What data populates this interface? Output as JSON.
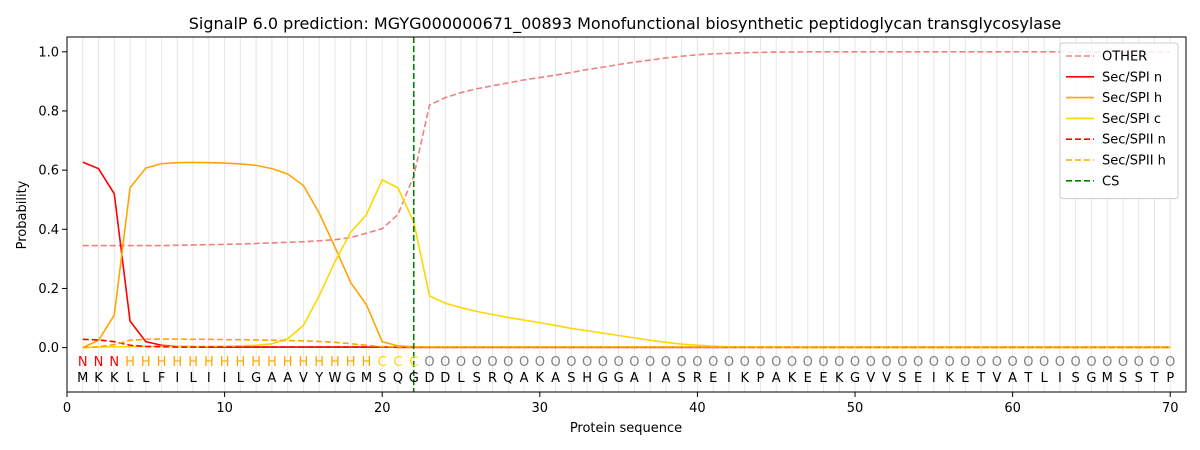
{
  "chart_data": {
    "type": "line",
    "title": "SignalP 6.0 prediction: MGYG000000671_00893 Monofunctional biosynthetic peptidoglycan transglycosylase",
    "xlabel": "Protein sequence",
    "ylabel": "Probability",
    "xlim": [
      0,
      71
    ],
    "ylim": [
      -0.15,
      1.05
    ],
    "xticks": [
      0,
      10,
      20,
      30,
      40,
      50,
      60,
      70
    ],
    "yticks": [
      0.0,
      0.2,
      0.4,
      0.6,
      0.8,
      1.0
    ],
    "xtick_labels": [
      "0",
      "10",
      "20",
      "30",
      "40",
      "50",
      "60",
      "70"
    ],
    "ytick_labels": [
      "0.0",
      "0.2",
      "0.4",
      "0.6",
      "0.8",
      "1.0"
    ],
    "grid": "vertical lines at every residue",
    "legend_position": "top-right",
    "sequence": [
      "M",
      "K",
      "K",
      "L",
      "L",
      "F",
      "I",
      "L",
      "I",
      "I",
      "L",
      "G",
      "A",
      "A",
      "V",
      "Y",
      "W",
      "G",
      "M",
      "S",
      "Q",
      "G",
      "D",
      "D",
      "L",
      "S",
      "R",
      "Q",
      "A",
      "K",
      "A",
      "S",
      "H",
      "G",
      "G",
      "A",
      "I",
      "A",
      "S",
      "R",
      "E",
      "I",
      "K",
      "P",
      "A",
      "K",
      "E",
      "E",
      "K",
      "G",
      "V",
      "V",
      "S",
      "E",
      "I",
      "K",
      "E",
      "T",
      "V",
      "A",
      "T",
      "L",
      "I",
      "S",
      "G",
      "M",
      "S",
      "S",
      "T",
      "P"
    ],
    "labels": [
      "N",
      "N",
      "N",
      "H",
      "H",
      "H",
      "H",
      "H",
      "H",
      "H",
      "H",
      "H",
      "H",
      "H",
      "H",
      "H",
      "H",
      "H",
      "H",
      "C",
      "C",
      "C",
      "O",
      "O",
      "O",
      "O",
      "O",
      "O",
      "O",
      "O",
      "O",
      "O",
      "O",
      "O",
      "O",
      "O",
      "O",
      "O",
      "O",
      "O",
      "O",
      "O",
      "O",
      "O",
      "O",
      "O",
      "O",
      "O",
      "O",
      "O",
      "O",
      "O",
      "O",
      "O",
      "O",
      "O",
      "O",
      "O",
      "O",
      "O",
      "O",
      "O",
      "O",
      "O",
      "O",
      "O",
      "O",
      "O",
      "O",
      "O"
    ],
    "label_colors": {
      "N": "#ff0000",
      "H": "#ffa500",
      "C": "#ffd700",
      "O": "#808080"
    },
    "series": [
      {
        "name": "OTHER",
        "color": "#f08080",
        "dash": true,
        "values": [
          0.345,
          0.345,
          0.345,
          0.345,
          0.345,
          0.345,
          0.346,
          0.347,
          0.348,
          0.349,
          0.35,
          0.352,
          0.354,
          0.356,
          0.358,
          0.361,
          0.365,
          0.372,
          0.387,
          0.402,
          0.45,
          0.58,
          0.82,
          0.845,
          0.862,
          0.875,
          0.885,
          0.895,
          0.905,
          0.913,
          0.921,
          0.93,
          0.94,
          0.948,
          0.957,
          0.965,
          0.972,
          0.979,
          0.985,
          0.99,
          0.993,
          0.995,
          0.997,
          0.998,
          0.999,
          0.999,
          1.0,
          1.0,
          1.0,
          1.0,
          1.0,
          1.0,
          1.0,
          1.0,
          1.0,
          1.0,
          1.0,
          1.0,
          1.0,
          1.0,
          1.0,
          1.0,
          1.0,
          1.0,
          1.0,
          1.0,
          1.0,
          1.0,
          1.0,
          1.0
        ]
      },
      {
        "name": "Sec/SPI n",
        "color": "#ff0000",
        "dash": false,
        "values": [
          0.627,
          0.605,
          0.52,
          0.09,
          0.02,
          0.008,
          0.004,
          0.003,
          0.002,
          0.002,
          0.002,
          0.002,
          0.002,
          0.002,
          0.002,
          0.002,
          0.002,
          0.002,
          0.002,
          0.002,
          0.001,
          0.001,
          0.001,
          0.001,
          0.001,
          0.001,
          0.001,
          0.001,
          0.001,
          0.001,
          0.001,
          0.001,
          0.001,
          0.001,
          0.001,
          0.001,
          0.001,
          0.001,
          0.001,
          0.001,
          0.001,
          0.001,
          0.001,
          0.001,
          0.001,
          0.001,
          0.001,
          0.001,
          0.001,
          0.001,
          0.001,
          0.001,
          0.001,
          0.001,
          0.001,
          0.001,
          0.001,
          0.001,
          0.001,
          0.001,
          0.001,
          0.001,
          0.001,
          0.001,
          0.001,
          0.001,
          0.001,
          0.001,
          0.001,
          0.001
        ]
      },
      {
        "name": "Sec/SPI h",
        "color": "#ffa500",
        "dash": false,
        "values": [
          0.0,
          0.025,
          0.11,
          0.54,
          0.607,
          0.622,
          0.625,
          0.626,
          0.625,
          0.624,
          0.621,
          0.616,
          0.605,
          0.587,
          0.548,
          0.455,
          0.34,
          0.22,
          0.145,
          0.02,
          0.006,
          0.003,
          0.002,
          0.002,
          0.002,
          0.002,
          0.002,
          0.002,
          0.002,
          0.002,
          0.002,
          0.002,
          0.002,
          0.002,
          0.002,
          0.002,
          0.002,
          0.002,
          0.002,
          0.002,
          0.002,
          0.002,
          0.002,
          0.002,
          0.002,
          0.002,
          0.002,
          0.002,
          0.002,
          0.002,
          0.002,
          0.002,
          0.002,
          0.002,
          0.002,
          0.002,
          0.002,
          0.002,
          0.002,
          0.002,
          0.002,
          0.002,
          0.002,
          0.002,
          0.002,
          0.002,
          0.002,
          0.002,
          0.002,
          0.002
        ]
      },
      {
        "name": "Sec/SPI c",
        "color": "#ffd700",
        "dash": false,
        "values": [
          0.0,
          0.002,
          0.003,
          0.003,
          0.004,
          0.004,
          0.004,
          0.004,
          0.004,
          0.005,
          0.006,
          0.008,
          0.013,
          0.03,
          0.075,
          0.175,
          0.29,
          0.39,
          0.45,
          0.567,
          0.54,
          0.425,
          0.175,
          0.15,
          0.135,
          0.122,
          0.112,
          0.102,
          0.093,
          0.084,
          0.075,
          0.065,
          0.057,
          0.049,
          0.041,
          0.033,
          0.025,
          0.018,
          0.012,
          0.008,
          0.005,
          0.003,
          0.002,
          0.001,
          0.001,
          0.001,
          0.0,
          0.0,
          0.0,
          0.0,
          0.0,
          0.0,
          0.0,
          0.0,
          0.0,
          0.0,
          0.0,
          0.0,
          0.0,
          0.0,
          0.0,
          0.0,
          0.0,
          0.0,
          0.0,
          0.0,
          0.0,
          0.0,
          0.0,
          0.0
        ]
      },
      {
        "name": "Sec/SPII n",
        "color": "#ff0000",
        "dash": true,
        "values": [
          0.028,
          0.026,
          0.02,
          0.008,
          0.004,
          0.003,
          0.002,
          0.002,
          0.002,
          0.002,
          0.002,
          0.002,
          0.002,
          0.002,
          0.002,
          0.002,
          0.002,
          0.002,
          0.002,
          0.002,
          0.001,
          0.001,
          0.001,
          0.001,
          0.001,
          0.001,
          0.001,
          0.001,
          0.001,
          0.001,
          0.001,
          0.001,
          0.001,
          0.001,
          0.001,
          0.001,
          0.001,
          0.001,
          0.001,
          0.001,
          0.001,
          0.001,
          0.001,
          0.001,
          0.001,
          0.001,
          0.001,
          0.001,
          0.001,
          0.001,
          0.001,
          0.001,
          0.001,
          0.001,
          0.001,
          0.001,
          0.001,
          0.001,
          0.001,
          0.001,
          0.001,
          0.001,
          0.001,
          0.001,
          0.001,
          0.001,
          0.001,
          0.001,
          0.001,
          0.001
        ]
      },
      {
        "name": "Sec/SPII h",
        "color": "#ffa500",
        "dash": true,
        "values": [
          0.0,
          0.003,
          0.01,
          0.025,
          0.028,
          0.029,
          0.029,
          0.028,
          0.028,
          0.027,
          0.027,
          0.026,
          0.025,
          0.024,
          0.023,
          0.021,
          0.018,
          0.013,
          0.008,
          0.003,
          0.002,
          0.002,
          0.002,
          0.002,
          0.002,
          0.002,
          0.002,
          0.002,
          0.002,
          0.002,
          0.002,
          0.002,
          0.002,
          0.002,
          0.002,
          0.002,
          0.002,
          0.002,
          0.002,
          0.002,
          0.002,
          0.002,
          0.002,
          0.002,
          0.002,
          0.002,
          0.002,
          0.002,
          0.002,
          0.002,
          0.002,
          0.002,
          0.002,
          0.002,
          0.002,
          0.002,
          0.002,
          0.002,
          0.002,
          0.002,
          0.002,
          0.002,
          0.002,
          0.002,
          0.002,
          0.002,
          0.002,
          0.002,
          0.002,
          0.002
        ]
      }
    ],
    "cs": {
      "name": "CS",
      "color": "#008000",
      "x": 22
    }
  }
}
